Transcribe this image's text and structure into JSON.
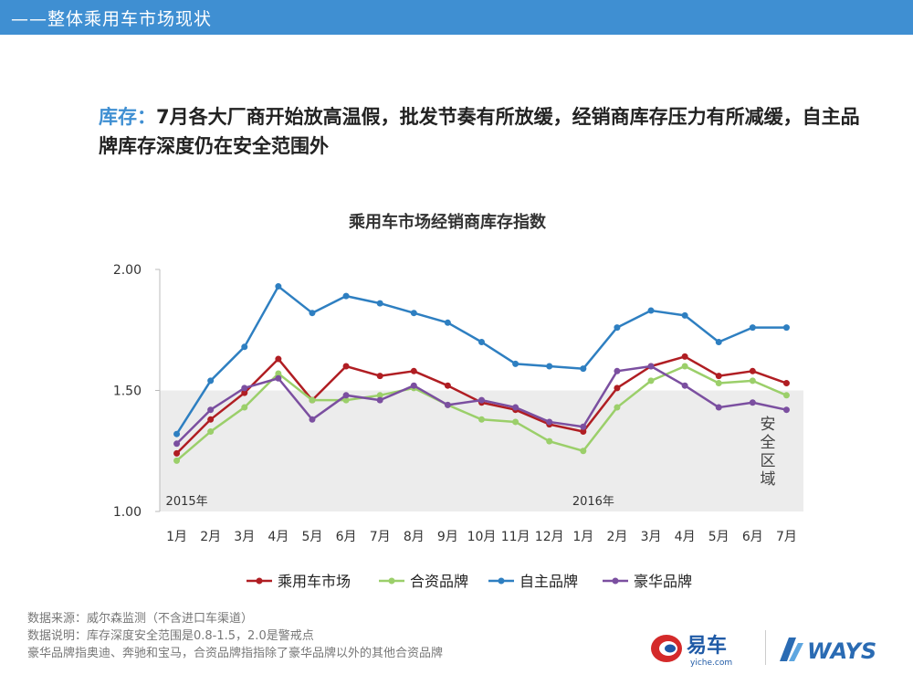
{
  "header": {
    "title": "——整体乘用车市场现状"
  },
  "headline": {
    "key": "库存",
    "separator": "：",
    "text": "7月各大厂商开始放高温假，批发节奏有所放缓，经销商库存压力有所减缓，自主品牌库存深度仍在安全范围外"
  },
  "chart_data": {
    "type": "line",
    "title": "乘用车市场经销商库存指数",
    "categories": [
      "1月",
      "2月",
      "3月",
      "4月",
      "5月",
      "6月",
      "7月",
      "8月",
      "9月",
      "10月",
      "11月",
      "12月",
      "1月",
      "2月",
      "3月",
      "4月",
      "5月",
      "6月",
      "7月"
    ],
    "year_labels": [
      {
        "label": "2015年",
        "index": 0
      },
      {
        "label": "2016年",
        "index": 12
      }
    ],
    "ylim": [
      1.0,
      2.0
    ],
    "yticks": [
      "1.00",
      "1.50",
      "2.00"
    ],
    "safe_zone": {
      "range": [
        1.0,
        1.5
      ],
      "label": "安全区域"
    },
    "series": [
      {
        "name": "乘用车市场",
        "color": "#b01e23",
        "values": [
          1.24,
          1.38,
          1.49,
          1.63,
          1.46,
          1.6,
          1.56,
          1.58,
          1.52,
          1.45,
          1.42,
          1.36,
          1.33,
          1.51,
          1.6,
          1.64,
          1.56,
          1.58,
          1.53
        ]
      },
      {
        "name": "合资品牌",
        "color": "#9bcf6a",
        "values": [
          1.21,
          1.33,
          1.43,
          1.57,
          1.46,
          1.46,
          1.48,
          1.51,
          1.44,
          1.38,
          1.37,
          1.29,
          1.25,
          1.43,
          1.54,
          1.6,
          1.53,
          1.54,
          1.48
        ]
      },
      {
        "name": "自主品牌",
        "color": "#2e7fc1",
        "values": [
          1.32,
          1.54,
          1.68,
          1.93,
          1.82,
          1.89,
          1.86,
          1.82,
          1.78,
          1.7,
          1.61,
          1.6,
          1.59,
          1.76,
          1.83,
          1.81,
          1.7,
          1.76,
          1.76
        ]
      },
      {
        "name": "豪华品牌",
        "color": "#7b4fa0",
        "values": [
          1.28,
          1.42,
          1.51,
          1.55,
          1.38,
          1.48,
          1.46,
          1.52,
          1.44,
          1.46,
          1.43,
          1.37,
          1.35,
          1.58,
          1.6,
          1.52,
          1.43,
          1.45,
          1.42
        ]
      }
    ]
  },
  "footnotes": [
    "数据来源：威尔森监测（不含进口车渠道）",
    "数据说明：库存深度安全范围是0.8-1.5，2.0是警戒点",
    "豪华品牌指奥迪、奔驰和宝马，合资品牌指指除了豪华品牌以外的其他合资品牌"
  ],
  "logos": {
    "yiche_text": "易车",
    "yiche_sub": "yiche.com",
    "ways_text": "WAYS"
  }
}
